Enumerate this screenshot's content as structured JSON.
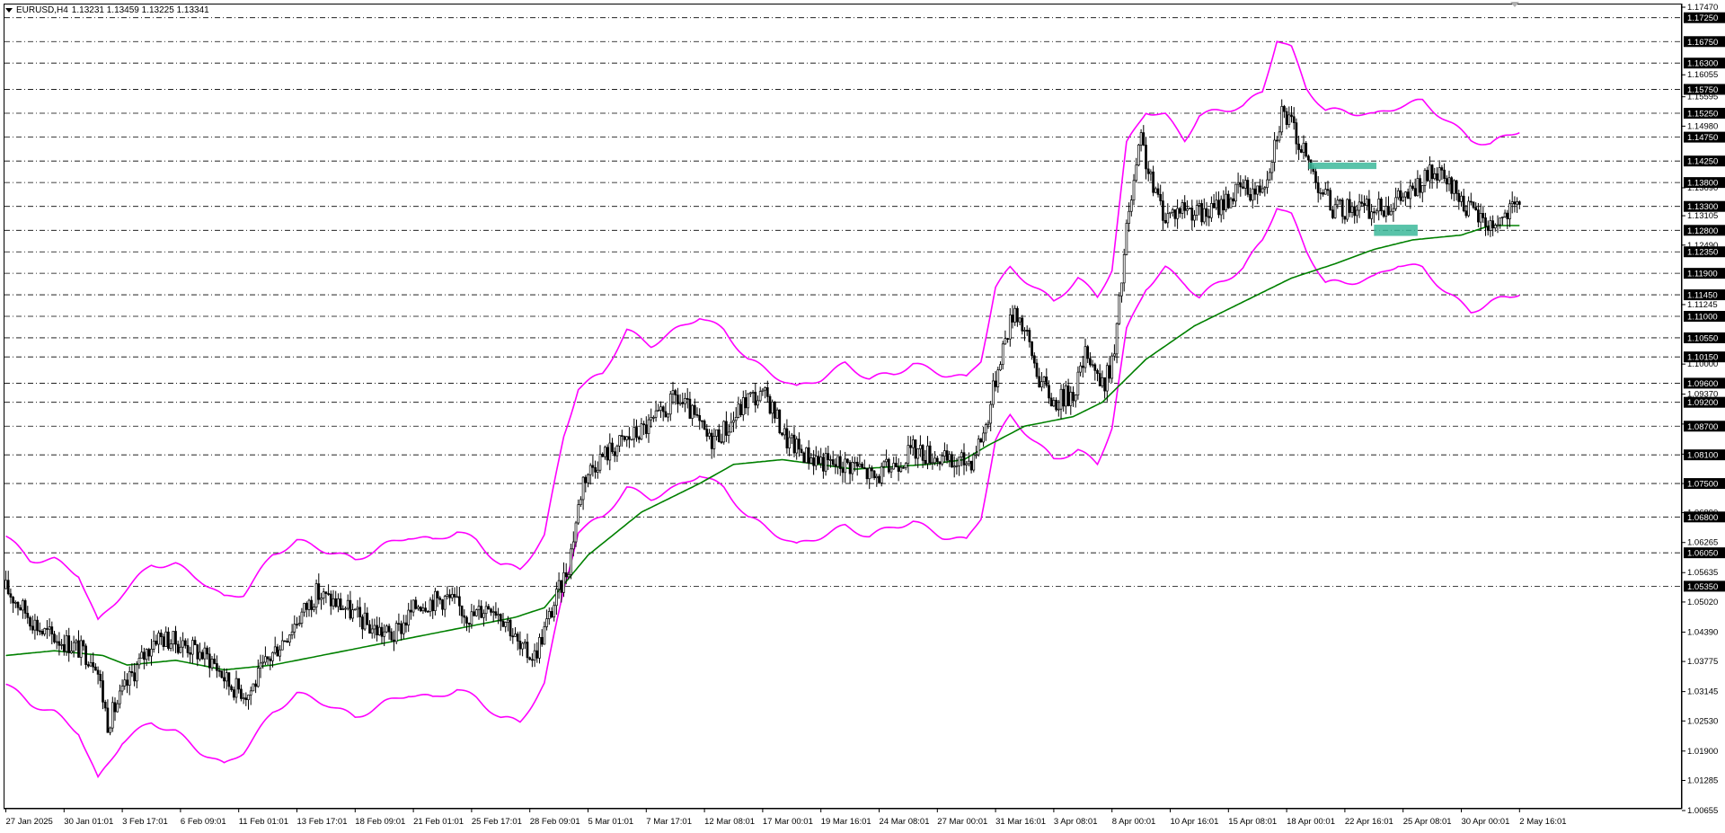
{
  "header": {
    "symbol": "EURUSD,H4",
    "ohlc": "1.13231 1.13459 1.13225 1.13341"
  },
  "colors": {
    "background": "#ffffff",
    "candle": "#000000",
    "bands": "#ff00ff",
    "moving_average": "#008000",
    "zones": "#3cb89a"
  },
  "chart_data": {
    "type": "candlestick",
    "symbol": "EURUSD",
    "timeframe": "H4",
    "ylim": [
      1.00655,
      1.1747
    ],
    "x_ticks": [
      "27 Jan 2025",
      "30 Jan 01:01",
      "3 Feb 17:01",
      "6 Feb 09:01",
      "11 Feb 01:01",
      "13 Feb 17:01",
      "18 Feb 09:01",
      "21 Feb 01:01",
      "25 Feb 17:01",
      "28 Feb 09:01",
      "5 Mar 01:01",
      "7 Mar 17:01",
      "12 Mar 08:01",
      "17 Mar 00:01",
      "19 Mar 16:01",
      "24 Mar 08:01",
      "27 Mar 00:01",
      "31 Mar 16:01",
      "3 Apr 08:01",
      "8 Apr 00:01",
      "10 Apr 16:01",
      "15 Apr 08:01",
      "18 Apr 00:01",
      "22 Apr 16:01",
      "25 Apr 08:01",
      "30 Apr 00:01",
      "2 May 16:01"
    ],
    "price_ticks": [
      "1.17470",
      "1.16055",
      "1.15595",
      "1.14980",
      "1.13690",
      "1.13105",
      "1.12490",
      "1.11245",
      "1.10000",
      "1.09370",
      "1.08745",
      "1.08115",
      "1.07500",
      "1.06890",
      "1.06265",
      "1.05635",
      "1.05020",
      "1.04390",
      "1.03775",
      "1.03145",
      "1.02530",
      "1.01900",
      "1.01285",
      "1.00655"
    ],
    "level_lines": [
      "1.17250",
      "1.16750",
      "1.16300",
      "1.15750",
      "1.15250",
      "1.14750",
      "1.14250",
      "1.13800",
      "1.13300",
      "1.12800",
      "1.12350",
      "1.11900",
      "1.11450",
      "1.11000",
      "1.10550",
      "1.10150",
      "1.09600",
      "1.09200",
      "1.08700",
      "1.08100",
      "1.07500",
      "1.06800",
      "1.06050",
      "1.05350"
    ],
    "current_price": 1.13341,
    "series_keypoints": {
      "price": [
        [
          0,
          1.053
        ],
        [
          15,
          1.044
        ],
        [
          28,
          1.041
        ],
        [
          37,
          1.038
        ],
        [
          42,
          1.025
        ],
        [
          52,
          1.035
        ],
        [
          62,
          1.043
        ],
        [
          75,
          1.041
        ],
        [
          85,
          1.038
        ],
        [
          92,
          1.033
        ],
        [
          100,
          1.031
        ],
        [
          108,
          1.038
        ],
        [
          118,
          1.045
        ],
        [
          128,
          1.052
        ],
        [
          140,
          1.049
        ],
        [
          150,
          1.045
        ],
        [
          160,
          1.043
        ],
        [
          170,
          1.05
        ],
        [
          182,
          1.051
        ],
        [
          192,
          1.047
        ],
        [
          200,
          1.05
        ],
        [
          207,
          1.046
        ],
        [
          212,
          1.04
        ],
        [
          218,
          1.039
        ],
        [
          224,
          1.047
        ],
        [
          232,
          1.058
        ],
        [
          238,
          1.076
        ],
        [
          244,
          1.08
        ],
        [
          252,
          1.083
        ],
        [
          262,
          1.086
        ],
        [
          270,
          1.089
        ],
        [
          276,
          1.093
        ],
        [
          282,
          1.09
        ],
        [
          290,
          1.084
        ],
        [
          298,
          1.087
        ],
        [
          306,
          1.093
        ],
        [
          314,
          1.093
        ],
        [
          322,
          1.084
        ],
        [
          330,
          1.081
        ],
        [
          340,
          1.079
        ],
        [
          350,
          1.079
        ],
        [
          358,
          1.076
        ],
        [
          366,
          1.079
        ],
        [
          374,
          1.082
        ],
        [
          382,
          1.081
        ],
        [
          390,
          1.079
        ],
        [
          398,
          1.08
        ],
        [
          404,
          1.087
        ],
        [
          410,
          1.102
        ],
        [
          416,
          1.112
        ],
        [
          420,
          1.107
        ],
        [
          426,
          1.097
        ],
        [
          432,
          1.092
        ],
        [
          440,
          1.094
        ],
        [
          446,
          1.103
        ],
        [
          452,
          1.095
        ],
        [
          457,
          1.102
        ],
        [
          462,
          1.128
        ],
        [
          468,
          1.147
        ],
        [
          472,
          1.138
        ],
        [
          478,
          1.131
        ],
        [
          486,
          1.133
        ],
        [
          494,
          1.131
        ],
        [
          502,
          1.134
        ],
        [
          510,
          1.137
        ],
        [
          516,
          1.136
        ],
        [
          520,
          1.14
        ],
        [
          526,
          1.153
        ],
        [
          530,
          1.15
        ],
        [
          536,
          1.143
        ],
        [
          542,
          1.137
        ],
        [
          548,
          1.132
        ],
        [
          556,
          1.133
        ],
        [
          564,
          1.132
        ],
        [
          572,
          1.134
        ],
        [
          580,
          1.136
        ],
        [
          588,
          1.14
        ],
        [
          596,
          1.137
        ],
        [
          604,
          1.132
        ],
        [
          612,
          1.129
        ],
        [
          618,
          1.131
        ],
        [
          624,
          1.133
        ]
      ],
      "upper_band": [
        [
          0,
          1.064
        ],
        [
          10,
          1.059
        ],
        [
          20,
          1.059
        ],
        [
          30,
          1.056
        ],
        [
          38,
          1.046
        ],
        [
          48,
          1.052
        ],
        [
          60,
          1.058
        ],
        [
          70,
          1.058
        ],
        [
          80,
          1.055
        ],
        [
          90,
          1.051
        ],
        [
          98,
          1.052
        ],
        [
          110,
          1.06
        ],
        [
          120,
          1.063
        ],
        [
          132,
          1.061
        ],
        [
          144,
          1.059
        ],
        [
          156,
          1.062
        ],
        [
          166,
          1.064
        ],
        [
          176,
          1.063
        ],
        [
          186,
          1.065
        ],
        [
          194,
          1.063
        ],
        [
          204,
          1.058
        ],
        [
          212,
          1.057
        ],
        [
          222,
          1.064
        ],
        [
          230,
          1.085
        ],
        [
          236,
          1.095
        ],
        [
          246,
          1.098
        ],
        [
          256,
          1.107
        ],
        [
          266,
          1.104
        ],
        [
          276,
          1.107
        ],
        [
          286,
          1.11
        ],
        [
          296,
          1.107
        ],
        [
          306,
          1.101
        ],
        [
          316,
          1.098
        ],
        [
          326,
          1.095
        ],
        [
          336,
          1.097
        ],
        [
          346,
          1.1
        ],
        [
          356,
          1.097
        ],
        [
          366,
          1.098
        ],
        [
          374,
          1.1
        ],
        [
          386,
          1.098
        ],
        [
          396,
          1.097
        ],
        [
          402,
          1.101
        ],
        [
          408,
          1.116
        ],
        [
          414,
          1.12
        ],
        [
          422,
          1.117
        ],
        [
          432,
          1.113
        ],
        [
          442,
          1.118
        ],
        [
          450,
          1.114
        ],
        [
          456,
          1.12
        ],
        [
          462,
          1.146
        ],
        [
          470,
          1.153
        ],
        [
          478,
          1.152
        ],
        [
          486,
          1.147
        ],
        [
          492,
          1.152
        ],
        [
          500,
          1.153
        ],
        [
          510,
          1.154
        ],
        [
          518,
          1.157
        ],
        [
          524,
          1.168
        ],
        [
          530,
          1.166
        ],
        [
          536,
          1.158
        ],
        [
          544,
          1.153
        ],
        [
          552,
          1.153
        ],
        [
          564,
          1.152
        ],
        [
          574,
          1.154
        ],
        [
          584,
          1.155
        ],
        [
          594,
          1.151
        ],
        [
          604,
          1.147
        ],
        [
          612,
          1.146
        ],
        [
          620,
          1.148
        ],
        [
          624,
          1.149
        ]
      ],
      "lower_band": [
        [
          0,
          1.033
        ],
        [
          10,
          1.029
        ],
        [
          20,
          1.027
        ],
        [
          30,
          1.023
        ],
        [
          38,
          1.013
        ],
        [
          48,
          1.021
        ],
        [
          60,
          1.025
        ],
        [
          70,
          1.023
        ],
        [
          80,
          1.019
        ],
        [
          90,
          1.016
        ],
        [
          98,
          1.019
        ],
        [
          110,
          1.027
        ],
        [
          120,
          1.031
        ],
        [
          132,
          1.029
        ],
        [
          144,
          1.026
        ],
        [
          156,
          1.029
        ],
        [
          166,
          1.031
        ],
        [
          176,
          1.03
        ],
        [
          186,
          1.032
        ],
        [
          194,
          1.03
        ],
        [
          204,
          1.026
        ],
        [
          212,
          1.025
        ],
        [
          222,
          1.033
        ],
        [
          230,
          1.053
        ],
        [
          236,
          1.065
        ],
        [
          246,
          1.068
        ],
        [
          256,
          1.074
        ],
        [
          266,
          1.072
        ],
        [
          276,
          1.074
        ],
        [
          286,
          1.077
        ],
        [
          296,
          1.074
        ],
        [
          306,
          1.068
        ],
        [
          316,
          1.065
        ],
        [
          326,
          1.062
        ],
        [
          336,
          1.064
        ],
        [
          346,
          1.066
        ],
        [
          356,
          1.064
        ],
        [
          366,
          1.066
        ],
        [
          374,
          1.067
        ],
        [
          386,
          1.064
        ],
        [
          396,
          1.063
        ],
        [
          402,
          1.068
        ],
        [
          408,
          1.084
        ],
        [
          414,
          1.089
        ],
        [
          422,
          1.085
        ],
        [
          432,
          1.08
        ],
        [
          442,
          1.082
        ],
        [
          450,
          1.079
        ],
        [
          456,
          1.087
        ],
        [
          462,
          1.107
        ],
        [
          470,
          1.116
        ],
        [
          478,
          1.12
        ],
        [
          486,
          1.117
        ],
        [
          492,
          1.114
        ],
        [
          500,
          1.117
        ],
        [
          510,
          1.12
        ],
        [
          518,
          1.126
        ],
        [
          524,
          1.133
        ],
        [
          530,
          1.131
        ],
        [
          536,
          1.124
        ],
        [
          544,
          1.117
        ],
        [
          552,
          1.117
        ],
        [
          564,
          1.118
        ],
        [
          574,
          1.121
        ],
        [
          584,
          1.12
        ],
        [
          594,
          1.115
        ],
        [
          604,
          1.111
        ],
        [
          612,
          1.113
        ],
        [
          620,
          1.114
        ],
        [
          624,
          1.115
        ]
      ],
      "moving_average": [
        [
          0,
          1.039
        ],
        [
          20,
          1.04
        ],
        [
          40,
          1.039
        ],
        [
          50,
          1.037
        ],
        [
          70,
          1.038
        ],
        [
          90,
          1.036
        ],
        [
          110,
          1.037
        ],
        [
          140,
          1.04
        ],
        [
          170,
          1.043
        ],
        [
          200,
          1.046
        ],
        [
          210,
          1.047
        ],
        [
          222,
          1.049
        ],
        [
          240,
          1.06
        ],
        [
          262,
          1.069
        ],
        [
          286,
          1.075
        ],
        [
          300,
          1.079
        ],
        [
          320,
          1.08
        ],
        [
          350,
          1.078
        ],
        [
          380,
          1.079
        ],
        [
          395,
          1.08
        ],
        [
          405,
          1.083
        ],
        [
          420,
          1.087
        ],
        [
          440,
          1.089
        ],
        [
          452,
          1.092
        ],
        [
          470,
          1.101
        ],
        [
          490,
          1.108
        ],
        [
          510,
          1.113
        ],
        [
          530,
          1.118
        ],
        [
          548,
          1.121
        ],
        [
          564,
          1.124
        ],
        [
          580,
          1.126
        ],
        [
          600,
          1.127
        ],
        [
          612,
          1.129
        ],
        [
          624,
          1.129
        ]
      ]
    },
    "zones": [
      {
        "from": 537,
        "to": 565,
        "low": 1.1412,
        "high": 1.1418
      },
      {
        "from": 564,
        "to": 582,
        "low": 1.1272,
        "high": 1.1288
      }
    ],
    "grid": false
  }
}
